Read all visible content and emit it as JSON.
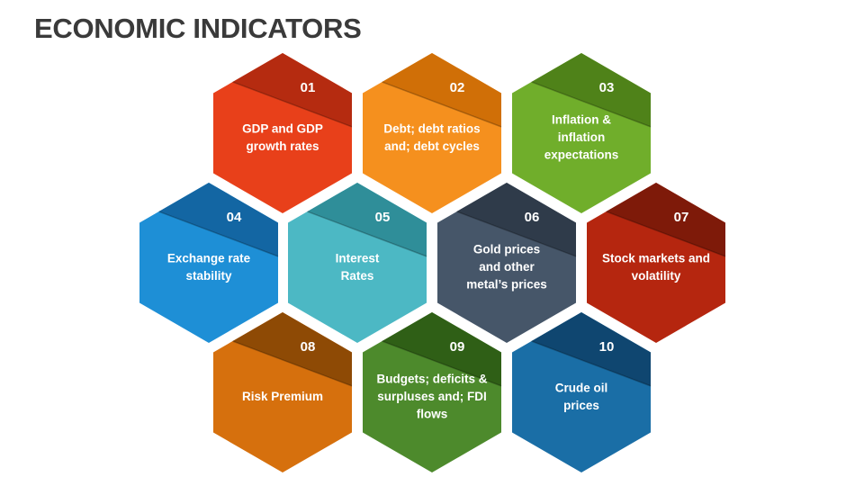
{
  "title": "ECONOMIC INDICATORS",
  "items": [
    {
      "number": "01",
      "lines": [
        "GDP and GDP",
        "growth rates"
      ],
      "color": "#e8401a",
      "dark": "#b52b10"
    },
    {
      "number": "02",
      "lines": [
        "Debt; debt ratios",
        "and; debt cycles"
      ],
      "color": "#f5901e",
      "dark": "#d06f07"
    },
    {
      "number": "03",
      "lines": [
        "Inflation &",
        "inflation",
        "expectations"
      ],
      "color": "#70ae2b",
      "dark": "#4f8219"
    },
    {
      "number": "04",
      "lines": [
        "Exchange rate",
        "stability"
      ],
      "color": "#1e8fd6",
      "dark": "#1366a3"
    },
    {
      "number": "05",
      "lines": [
        "Interest",
        "Rates"
      ],
      "color": "#4cb8c4",
      "dark": "#2f8e99"
    },
    {
      "number": "06",
      "lines": [
        "Gold prices",
        "and other",
        "metal’s prices"
      ],
      "color": "#465669",
      "dark": "#2f3b4a"
    },
    {
      "number": "07",
      "lines": [
        "Stock markets and",
        "volatility"
      ],
      "color": "#b5260f",
      "dark": "#7e1a09"
    },
    {
      "number": "08",
      "lines": [
        "Risk Premium"
      ],
      "color": "#d6700d",
      "dark": "#8e4a05"
    },
    {
      "number": "09",
      "lines": [
        "Budgets; deficits &",
        "surpluses and; FDI",
        "flows"
      ],
      "color": "#4d8a2c",
      "dark": "#2f5f16"
    },
    {
      "number": "10",
      "lines": [
        "Crude oil",
        "prices"
      ],
      "color": "#1a6ea6",
      "dark": "#0f4670"
    }
  ]
}
